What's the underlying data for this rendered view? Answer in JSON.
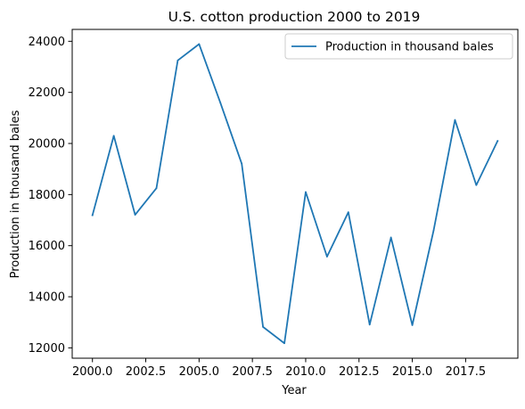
{
  "chart_data": {
    "type": "line",
    "title": "U.S. cotton production 2000 to 2019",
    "xlabel": "Year",
    "ylabel": "Production in thousand bales",
    "xlim": [
      1999.05,
      2019.95
    ],
    "ylim": [
      11595,
      24465
    ],
    "xticks": [
      2000.0,
      2002.5,
      2005.0,
      2007.5,
      2010.0,
      2012.5,
      2015.0,
      2017.5
    ],
    "xtick_labels": [
      "2000.0",
      "2002.5",
      "2005.0",
      "2007.5",
      "2010.0",
      "2012.5",
      "2015.0",
      "2017.5"
    ],
    "yticks": [
      12000,
      14000,
      16000,
      18000,
      20000,
      22000,
      24000
    ],
    "ytick_labels": [
      "12000",
      "14000",
      "16000",
      "18000",
      "20000",
      "22000",
      "24000"
    ],
    "grid": false,
    "legend": {
      "position": "top-right",
      "entries": [
        "Production in thousand bales"
      ]
    },
    "colors": {
      "line": "#1f77b4",
      "axes": "#000000",
      "background": "#ffffff"
    },
    "series": [
      {
        "name": "Production in thousand bales",
        "x": [
          2000,
          2001,
          2002,
          2003,
          2004,
          2005,
          2006,
          2007,
          2008,
          2009,
          2010,
          2011,
          2012,
          2013,
          2014,
          2015,
          2016,
          2017,
          2018,
          2019
        ],
        "values": [
          17190,
          20300,
          17210,
          18250,
          23250,
          23890,
          21590,
          19210,
          12820,
          12180,
          18100,
          15570,
          17310,
          12910,
          16320,
          12890,
          16600,
          20920,
          18370,
          20100
        ]
      }
    ]
  }
}
